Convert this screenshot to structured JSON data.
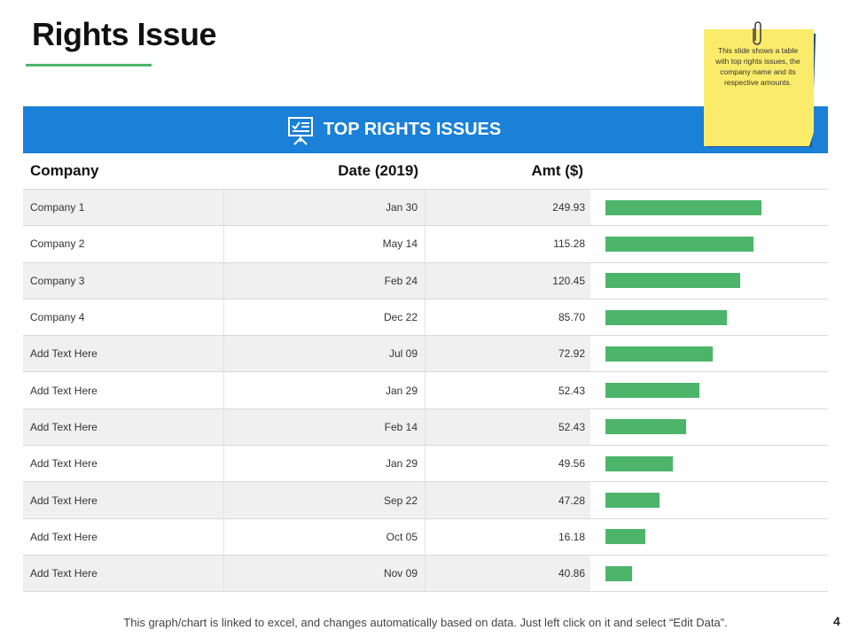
{
  "title": "Rights Issue",
  "banner": {
    "label": "TOP RIGHTS ISSUES",
    "icon": "presentation-board-checklist-icon"
  },
  "note": {
    "text": "This slide shows a table with top rights issues, the company name and its respective amounts."
  },
  "table": {
    "headers": {
      "company": "Company",
      "date": "Date (2019)",
      "amount": "Amt ($)"
    },
    "rows": [
      {
        "company": "Company 1",
        "date": "Jan 30",
        "amount": "249.93",
        "bar": 100
      },
      {
        "company": "Company 2",
        "date": "May 14",
        "amount": "115.28",
        "bar": 95
      },
      {
        "company": "Company 3",
        "date": "Feb 24",
        "amount": "120.45",
        "bar": 86.4
      },
      {
        "company": "Company 4",
        "date": "Dec 22",
        "amount": "85.70",
        "bar": 77.8
      },
      {
        "company": "Add Text Here",
        "date": "Jul 09",
        "amount": "72.92",
        "bar": 69
      },
      {
        "company": "Add Text Here",
        "date": "Jan 29",
        "amount": "52.43",
        "bar": 60.2
      },
      {
        "company": "Add Text Here",
        "date": "Feb 14",
        "amount": "52.43",
        "bar": 51.7
      },
      {
        "company": "Add Text Here",
        "date": "Jan 29",
        "amount": "49.56",
        "bar": 43.2
      },
      {
        "company": "Add Text Here",
        "date": "Sep 22",
        "amount": "47.28",
        "bar": 34.7
      },
      {
        "company": "Add Text Here",
        "date": "Oct 05",
        "amount": "16.18",
        "bar": 25.6
      },
      {
        "company": "Add Text Here",
        "date": "Nov 09",
        "amount": "40.86",
        "bar": 17
      }
    ]
  },
  "footer": {
    "text": "This graph/chart is linked to excel, and changes automatically based on data. Just left click on it and select “Edit Data”."
  },
  "page_number": "4",
  "colors": {
    "accent": "#1a80d8",
    "bar": "#4cb56a",
    "note": "#fbeb6a"
  }
}
